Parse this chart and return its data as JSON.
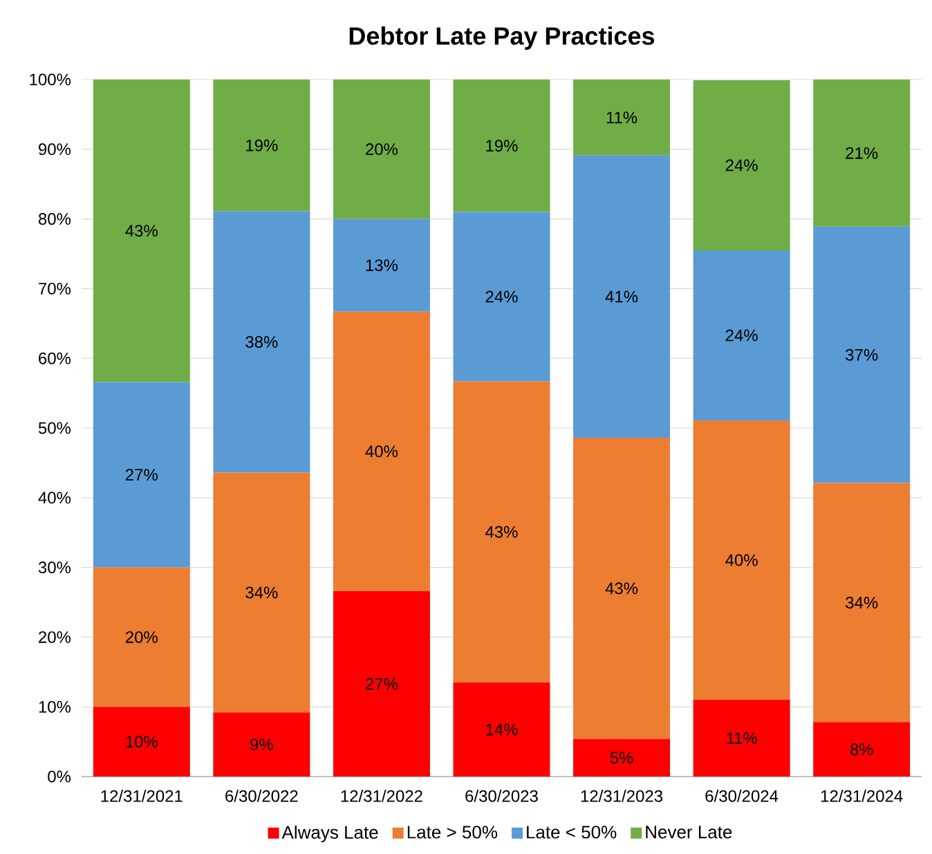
{
  "chart_data": {
    "type": "bar",
    "title": "Debtor Late Pay Practices",
    "stacked": true,
    "categories": [
      "12/31/2021",
      "6/30/2022",
      "12/31/2022",
      "6/30/2023",
      "12/31/2023",
      "6/30/2024",
      "12/31/2024"
    ],
    "series": [
      {
        "name": "Always Late",
        "color": "#ff0000",
        "values": [
          10,
          9.2,
          26.6,
          13.5,
          5.4,
          11.0,
          7.8
        ],
        "value_labels": [
          "10%",
          "9%",
          "27%",
          "14%",
          "5%",
          "11%",
          "8%"
        ]
      },
      {
        "name": "Late > 50%",
        "color": "#ed7d31",
        "values": [
          20,
          34.4,
          40.1,
          43.2,
          43.2,
          40.1,
          34.3
        ],
        "value_labels": [
          "20%",
          "34%",
          "40%",
          "43%",
          "43%",
          "40%",
          "34%"
        ]
      },
      {
        "name": "Late < 50%",
        "color": "#5b9bd5",
        "values": [
          26.6,
          37.5,
          13.3,
          24.3,
          40.5,
          24.4,
          36.8
        ],
        "value_labels": [
          "27%",
          "38%",
          "13%",
          "24%",
          "41%",
          "24%",
          "37%"
        ]
      },
      {
        "name": "Never Late",
        "color": "#70ad47",
        "values": [
          43.4,
          18.9,
          20.0,
          19.0,
          10.9,
          24.4,
          21.1
        ],
        "value_labels": [
          "43%",
          "19%",
          "20%",
          "19%",
          "11%",
          "24%",
          "21%"
        ]
      }
    ],
    "ylim": [
      0,
      100
    ],
    "yticks": [
      {
        "value": 0,
        "label": "0%"
      },
      {
        "value": 10,
        "label": "10%"
      },
      {
        "value": 20,
        "label": "20%"
      },
      {
        "value": 30,
        "label": "30%"
      },
      {
        "value": 40,
        "label": "40%"
      },
      {
        "value": 50,
        "label": "50%"
      },
      {
        "value": 60,
        "label": "60%"
      },
      {
        "value": 70,
        "label": "70%"
      },
      {
        "value": 80,
        "label": "80%"
      },
      {
        "value": 90,
        "label": "90%"
      },
      {
        "value": 100,
        "label": "100%"
      }
    ],
    "grid": "y",
    "legend": "bottom"
  }
}
